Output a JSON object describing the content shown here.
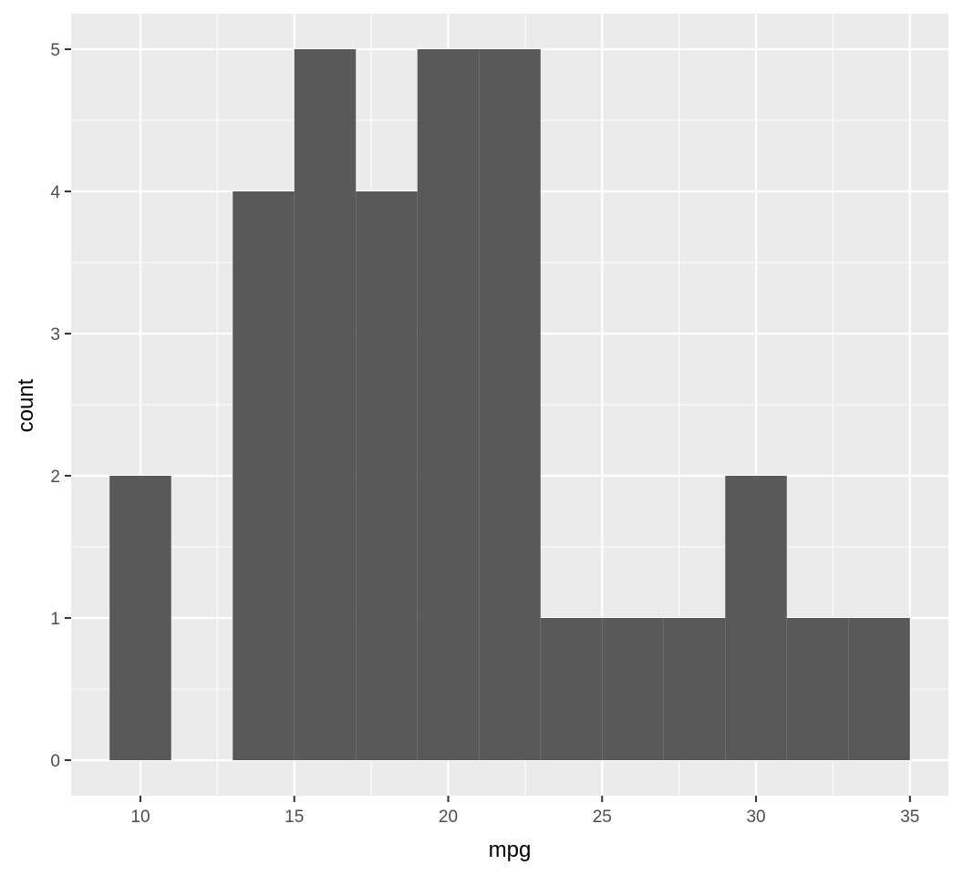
{
  "chart_data": {
    "type": "bar",
    "subtype": "histogram",
    "xlabel": "mpg",
    "ylabel": "count",
    "bins": [
      {
        "start": 9,
        "end": 11,
        "count": 2
      },
      {
        "start": 11,
        "end": 13,
        "count": 0
      },
      {
        "start": 13,
        "end": 15,
        "count": 4
      },
      {
        "start": 15,
        "end": 17,
        "count": 5
      },
      {
        "start": 17,
        "end": 19,
        "count": 4
      },
      {
        "start": 19,
        "end": 21,
        "count": 5
      },
      {
        "start": 21,
        "end": 23,
        "count": 5
      },
      {
        "start": 23,
        "end": 25,
        "count": 1
      },
      {
        "start": 25,
        "end": 27,
        "count": 1
      },
      {
        "start": 27,
        "end": 29,
        "count": 1
      },
      {
        "start": 29,
        "end": 31,
        "count": 2
      },
      {
        "start": 31,
        "end": 33,
        "count": 1
      },
      {
        "start": 33,
        "end": 35,
        "count": 1
      }
    ],
    "xticks": [
      "10",
      "15",
      "20",
      "25",
      "30",
      "35"
    ],
    "yticks": [
      "0",
      "1",
      "2",
      "3",
      "4",
      "5"
    ],
    "xlim": [
      7.75,
      36.25
    ],
    "ylim": [
      -0.25,
      5.25
    ],
    "grid": true,
    "colors": {
      "panel": "#ebebeb",
      "grid": "#ffffff",
      "bar": "#595959"
    }
  }
}
